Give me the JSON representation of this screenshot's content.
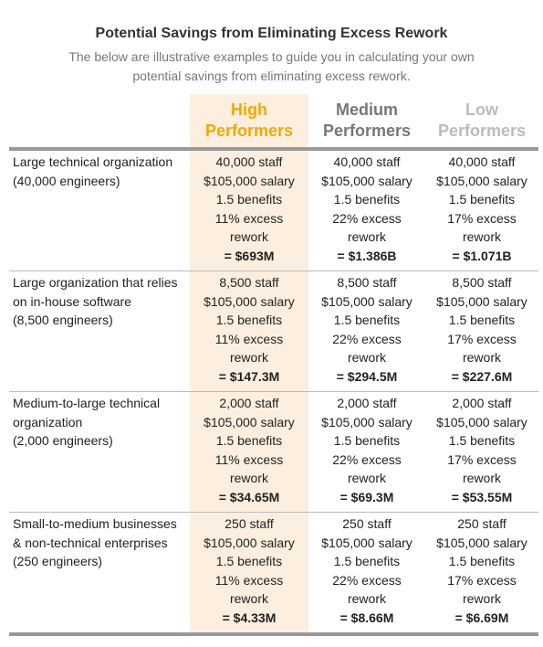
{
  "header": {
    "title": "Potential Savings from Eliminating Excess Rework",
    "subtitle": [
      "The below are illustrative examples to guide you in calculating your own",
      "potential savings from eliminating excess rework."
    ]
  },
  "table": {
    "columns": [
      [
        "High",
        "Performers"
      ],
      [
        "Medium",
        "Performers"
      ],
      [
        "Low",
        "Performers"
      ]
    ],
    "rows": [
      {
        "label": [
          "Large technical organization",
          "(40,000 engineers)"
        ],
        "cells": [
          [
            "40,000 staff",
            "$105,000 salary",
            "1.5 benefits",
            "11% excess",
            "rework",
            "= $693M"
          ],
          [
            "40,000 staff",
            "$105,000 salary",
            "1.5 benefits",
            "22% excess",
            "rework",
            "= $1.386B"
          ],
          [
            "40,000 staff",
            "$105,000 salary",
            "1.5 benefits",
            "17% excess",
            "rework",
            "= $1.071B"
          ]
        ]
      },
      {
        "label": [
          "Large organization that relies",
          "on in-house software",
          "(8,500 engineers)"
        ],
        "cells": [
          [
            "8,500 staff",
            "$105,000 salary",
            "1.5 benefits",
            "11% excess",
            "rework",
            "= $147.3M"
          ],
          [
            "8,500 staff",
            "$105,000 salary",
            "1.5 benefits",
            "22% excess",
            "rework",
            "= $294.5M"
          ],
          [
            "8,500 staff",
            "$105,000 salary",
            "1.5 benefits",
            "17% excess",
            "rework",
            "= $227.6M"
          ]
        ]
      },
      {
        "label": [
          "Medium-to-large technical",
          "organization",
          "(2,000 engineers)"
        ],
        "cells": [
          [
            "2,000 staff",
            "$105,000 salary",
            "1.5 benefits",
            "11% excess",
            "rework",
            "= $34.65M"
          ],
          [
            "2,000 staff",
            "$105,000 salary",
            "1.5 benefits",
            "22% excess",
            "rework",
            "= $69.3M"
          ],
          [
            "2,000 staff",
            "$105,000 salary",
            "1.5 benefits",
            "17% excess",
            "rework",
            "= $53.55M"
          ]
        ]
      },
      {
        "label": [
          "Small-to-medium businesses",
          "& non-technical enterprises",
          "(250 engineers)"
        ],
        "cells": [
          [
            "250 staff",
            "$105,000 salary",
            "1.5 benefits",
            "11% excess",
            "rework",
            "= $4.33M"
          ],
          [
            "250 staff",
            "$105,000 salary",
            "1.5 benefits",
            "22% excess",
            "rework",
            "= $8.66M"
          ],
          [
            "250 staff",
            "$105,000 salary",
            "1.5 benefits",
            "17% excess",
            "rework",
            "= $6.69M"
          ]
        ]
      }
    ]
  }
}
